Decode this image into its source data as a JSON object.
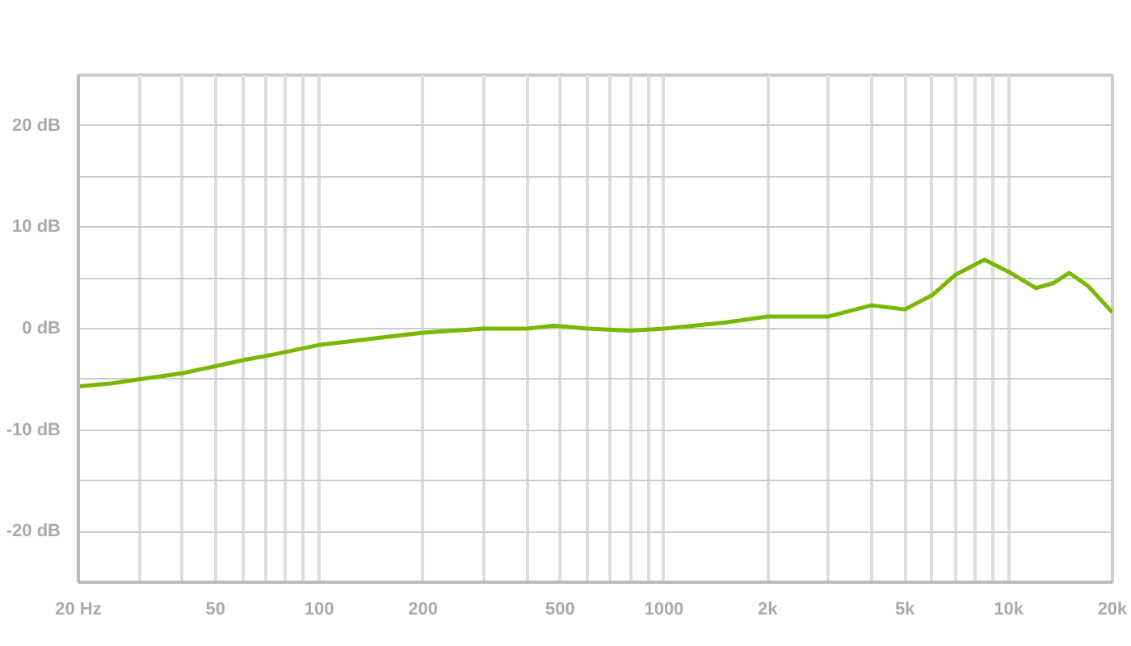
{
  "chart_data": {
    "type": "line",
    "log": "x",
    "grid": true,
    "line_style": "solid",
    "x": [
      20,
      25,
      30,
      40,
      50,
      60,
      70,
      80,
      100,
      120,
      150,
      200,
      300,
      400,
      480,
      600,
      800,
      1000,
      1500,
      2000,
      3000,
      4000,
      5000,
      6000,
      7000,
      8500,
      10000,
      12000,
      13500,
      15000,
      17000,
      20000
    ],
    "series": [
      {
        "color": "#7ab800",
        "values": [
          -5.7,
          -5.4,
          -5.0,
          -4.4,
          -3.7,
          -3.1,
          -2.7,
          -2.3,
          -1.6,
          -1.3,
          -0.9,
          -0.4,
          0.0,
          0.0,
          0.3,
          0.0,
          -0.2,
          0.0,
          0.6,
          1.2,
          1.2,
          2.3,
          1.9,
          3.3,
          5.3,
          6.8,
          5.6,
          4.0,
          4.5,
          5.5,
          4.2,
          1.6
        ]
      }
    ],
    "xlim": [
      20,
      20000
    ],
    "xticks": [
      {
        "value": 20,
        "label": "20 Hz"
      },
      {
        "value": 30,
        "label": null
      },
      {
        "value": 40,
        "label": null
      },
      50,
      {
        "value": 60,
        "label": null
      },
      {
        "value": 70,
        "label": null
      },
      {
        "value": 80,
        "label": null
      },
      {
        "value": 90,
        "label": null
      },
      100,
      200,
      {
        "value": 300,
        "label": null
      },
      {
        "value": 400,
        "label": null
      },
      500,
      {
        "value": 600,
        "label": null
      },
      {
        "value": 700,
        "label": null
      },
      {
        "value": 800,
        "label": null
      },
      {
        "value": 900,
        "label": null
      },
      1000,
      {
        "value": 2000,
        "label": "2k"
      },
      {
        "value": 3000,
        "label": null
      },
      {
        "value": 4000,
        "label": null
      },
      {
        "value": 5000,
        "label": "5k"
      },
      {
        "value": 6000,
        "label": null
      },
      {
        "value": 7000,
        "label": null
      },
      {
        "value": 8000,
        "label": null
      },
      {
        "value": 9000,
        "label": null
      },
      {
        "value": 10000,
        "label": "10k"
      },
      {
        "value": 20000,
        "label": "20k"
      }
    ],
    "ylim": [
      -25,
      25
    ],
    "yticks": [
      {
        "value": -25,
        "label": null
      },
      {
        "value": -20,
        "label": "-20 dB"
      },
      {
        "value": -15,
        "label": null
      },
      {
        "value": -10,
        "label": "-10 dB"
      },
      {
        "value": -5,
        "label": null
      },
      {
        "value": 0,
        "label": "0 dB"
      },
      {
        "value": 5,
        "label": null
      },
      {
        "value": 10,
        "label": "10 dB"
      },
      {
        "value": 15,
        "label": null
      },
      {
        "value": 20,
        "label": "20 dB"
      },
      {
        "value": 25,
        "label": null
      }
    ]
  }
}
